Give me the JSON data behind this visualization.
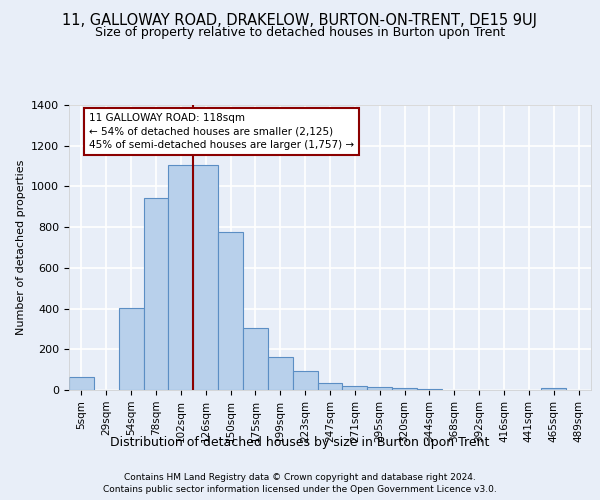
{
  "title": "11, GALLOWAY ROAD, DRAKELOW, BURTON-ON-TRENT, DE15 9UJ",
  "subtitle": "Size of property relative to detached houses in Burton upon Trent",
  "xlabel": "Distribution of detached houses by size in Burton upon Trent",
  "ylabel": "Number of detached properties",
  "footnote1": "Contains HM Land Registry data © Crown copyright and database right 2024.",
  "footnote2": "Contains public sector information licensed under the Open Government Licence v3.0.",
  "categories": [
    "5sqm",
    "29sqm",
    "54sqm",
    "78sqm",
    "102sqm",
    "126sqm",
    "150sqm",
    "175sqm",
    "199sqm",
    "223sqm",
    "247sqm",
    "271sqm",
    "295sqm",
    "320sqm",
    "344sqm",
    "368sqm",
    "392sqm",
    "416sqm",
    "441sqm",
    "465sqm",
    "489sqm"
  ],
  "values": [
    65,
    0,
    405,
    945,
    1105,
    1105,
    775,
    305,
    160,
    95,
    35,
    20,
    15,
    10,
    5,
    0,
    0,
    0,
    0,
    10,
    0
  ],
  "bar_color": "#b8d0eb",
  "bar_edgecolor": "#5b8ec4",
  "vline_position": 5,
  "vline_color": "#8b0000",
  "annotation_text": "11 GALLOWAY ROAD: 118sqm\n← 54% of detached houses are smaller (2,125)\n45% of semi-detached houses are larger (1,757) →",
  "ylim": [
    0,
    1400
  ],
  "yticks": [
    0,
    200,
    400,
    600,
    800,
    1000,
    1200,
    1400
  ],
  "background_color": "#e8eef8",
  "grid_color": "white",
  "title_fontsize": 10.5,
  "subtitle_fontsize": 9,
  "xlabel_fontsize": 9,
  "ylabel_fontsize": 8,
  "tick_fontsize": 8,
  "xtick_fontsize": 7.5
}
